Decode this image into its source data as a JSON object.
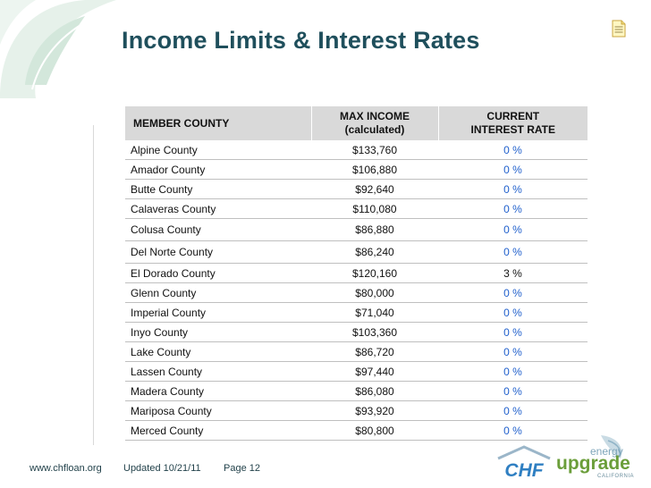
{
  "title": "Income Limits & Interest Rates",
  "table": {
    "headers": {
      "county": "MEMBER COUNTY",
      "income_line1": "MAX INCOME",
      "income_line2": "(calculated)",
      "rate_line1": "CURRENT",
      "rate_line2": "INTEREST RATE"
    },
    "rows": [
      {
        "county": "Alpine County",
        "income": "$133,760",
        "rate": "0 %"
      },
      {
        "county": "Amador County",
        "income": "$106,880",
        "rate": "0 %"
      },
      {
        "county": "Butte County",
        "income": "$92,640",
        "rate": "0 %"
      },
      {
        "county": "Calaveras County",
        "income": "$110,080",
        "rate": "0 %"
      },
      {
        "county": "Colusa County",
        "income": "$86,880",
        "rate": "0 %"
      },
      {
        "county": "Del Norte County",
        "income": "$86,240",
        "rate": "0 %"
      },
      {
        "county": "El Dorado County",
        "income": "$120,160",
        "rate": "3 %"
      },
      {
        "county": "Glenn County",
        "income": "$80,000",
        "rate": "0 %"
      },
      {
        "county": "Imperial County",
        "income": "$71,040",
        "rate": "0 %"
      },
      {
        "county": "Inyo County",
        "income": "$103,360",
        "rate": "0 %"
      },
      {
        "county": "Lake County",
        "income": "$86,720",
        "rate": "0 %"
      },
      {
        "county": "Lassen County",
        "income": "$97,440",
        "rate": "0 %"
      },
      {
        "county": "Madera County",
        "income": "$86,080",
        "rate": "0 %"
      },
      {
        "county": "Mariposa County",
        "income": "$93,920",
        "rate": "0 %"
      },
      {
        "county": "Merced County",
        "income": "$80,800",
        "rate": "0 %"
      }
    ]
  },
  "footer": {
    "url": "www.chfloan.org",
    "updated": "Updated 10/21/11",
    "page": "Page 12"
  },
  "logos": {
    "chf": "CHF",
    "energy": "energy",
    "upgrade": "upgrade",
    "california": "CALIFORNIA"
  },
  "icons": {
    "leaf": "leaf-decoration-icon",
    "note": "note-icon",
    "house": "house-roof-icon"
  },
  "colors": {
    "title": "#1f4f5c",
    "header_bg": "#d9d9d9",
    "rate_zero": "#1f5fcc",
    "leaf": "#e3efe8",
    "chf_blue": "#2f7fc2",
    "upgrade_green": "#6b9e3a"
  }
}
